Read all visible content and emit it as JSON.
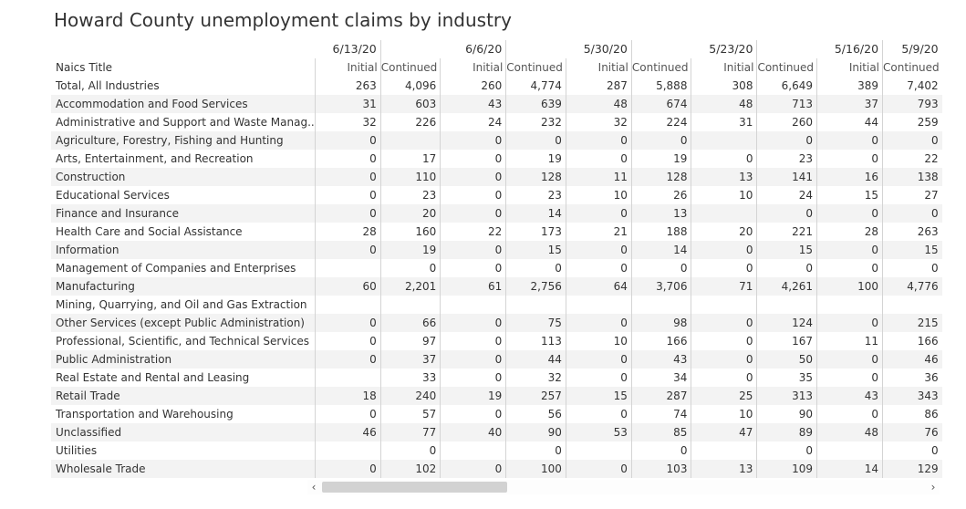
{
  "title": "Howard County unemployment claims by industry",
  "header": {
    "row_label": "Naics Title",
    "dates": [
      "6/13/20",
      "6/6/20",
      "5/30/20",
      "5/23/20",
      "5/16/20",
      "5/9/20"
    ],
    "initial_label": "Initial",
    "continued_label": "Continued"
  },
  "rows": [
    {
      "label": "Total, All Industries",
      "values": [
        "263",
        "4,096",
        "260",
        "4,774",
        "287",
        "5,888",
        "308",
        "6,649",
        "389",
        "7,402"
      ]
    },
    {
      "label": "Accommodation and Food Services",
      "values": [
        "31",
        "603",
        "43",
        "639",
        "48",
        "674",
        "48",
        "713",
        "37",
        "793"
      ]
    },
    {
      "label": "Administrative and Support and Waste Manag..",
      "values": [
        "32",
        "226",
        "24",
        "232",
        "32",
        "224",
        "31",
        "260",
        "44",
        "259"
      ]
    },
    {
      "label": "Agriculture, Forestry, Fishing and Hunting",
      "values": [
        "0",
        "",
        "0",
        "0",
        "0",
        "0",
        "",
        "0",
        "0",
        "0"
      ]
    },
    {
      "label": "Arts, Entertainment, and Recreation",
      "values": [
        "0",
        "17",
        "0",
        "19",
        "0",
        "19",
        "0",
        "23",
        "0",
        "22"
      ]
    },
    {
      "label": "Construction",
      "values": [
        "0",
        "110",
        "0",
        "128",
        "11",
        "128",
        "13",
        "141",
        "16",
        "138"
      ]
    },
    {
      "label": "Educational Services",
      "values": [
        "0",
        "23",
        "0",
        "23",
        "10",
        "26",
        "10",
        "24",
        "15",
        "27"
      ]
    },
    {
      "label": "Finance and Insurance",
      "values": [
        "0",
        "20",
        "0",
        "14",
        "0",
        "13",
        "",
        "0",
        "0",
        "0"
      ]
    },
    {
      "label": "Health Care and Social Assistance",
      "values": [
        "28",
        "160",
        "22",
        "173",
        "21",
        "188",
        "20",
        "221",
        "28",
        "263"
      ]
    },
    {
      "label": "Information",
      "values": [
        "0",
        "19",
        "0",
        "15",
        "0",
        "14",
        "0",
        "15",
        "0",
        "15"
      ]
    },
    {
      "label": "Management of Companies and Enterprises",
      "values": [
        "",
        "0",
        "0",
        "0",
        "0",
        "0",
        "0",
        "0",
        "0",
        "0"
      ]
    },
    {
      "label": "Manufacturing",
      "values": [
        "60",
        "2,201",
        "61",
        "2,756",
        "64",
        "3,706",
        "71",
        "4,261",
        "100",
        "4,776"
      ]
    },
    {
      "label": "Mining, Quarrying, and Oil and Gas Extraction",
      "values": [
        "",
        "",
        "",
        "",
        "",
        "",
        "",
        "",
        "",
        ""
      ]
    },
    {
      "label": "Other Services (except Public Administration)",
      "values": [
        "0",
        "66",
        "0",
        "75",
        "0",
        "98",
        "0",
        "124",
        "0",
        "215"
      ]
    },
    {
      "label": "Professional, Scientific, and Technical Services",
      "values": [
        "0",
        "97",
        "0",
        "113",
        "10",
        "166",
        "0",
        "167",
        "11",
        "166"
      ]
    },
    {
      "label": "Public Administration",
      "values": [
        "0",
        "37",
        "0",
        "44",
        "0",
        "43",
        "0",
        "50",
        "0",
        "46"
      ]
    },
    {
      "label": "Real Estate and Rental and Leasing",
      "values": [
        "",
        "33",
        "0",
        "32",
        "0",
        "34",
        "0",
        "35",
        "0",
        "36"
      ]
    },
    {
      "label": "Retail Trade",
      "values": [
        "18",
        "240",
        "19",
        "257",
        "15",
        "287",
        "25",
        "313",
        "43",
        "343"
      ]
    },
    {
      "label": "Transportation and Warehousing",
      "values": [
        "0",
        "57",
        "0",
        "56",
        "0",
        "74",
        "10",
        "90",
        "0",
        "86"
      ]
    },
    {
      "label": "Unclassified",
      "values": [
        "46",
        "77",
        "40",
        "90",
        "53",
        "85",
        "47",
        "89",
        "48",
        "76"
      ]
    },
    {
      "label": "Utilities",
      "values": [
        "",
        "0",
        "",
        "0",
        "",
        "0",
        "",
        "0",
        "",
        "0"
      ]
    },
    {
      "label": "Wholesale Trade",
      "values": [
        "0",
        "102",
        "0",
        "100",
        "0",
        "103",
        "13",
        "109",
        "14",
        "129"
      ]
    }
  ],
  "scrollbar": {
    "left_arrow": "‹",
    "right_arrow": "›",
    "position_fraction": 0.0
  }
}
